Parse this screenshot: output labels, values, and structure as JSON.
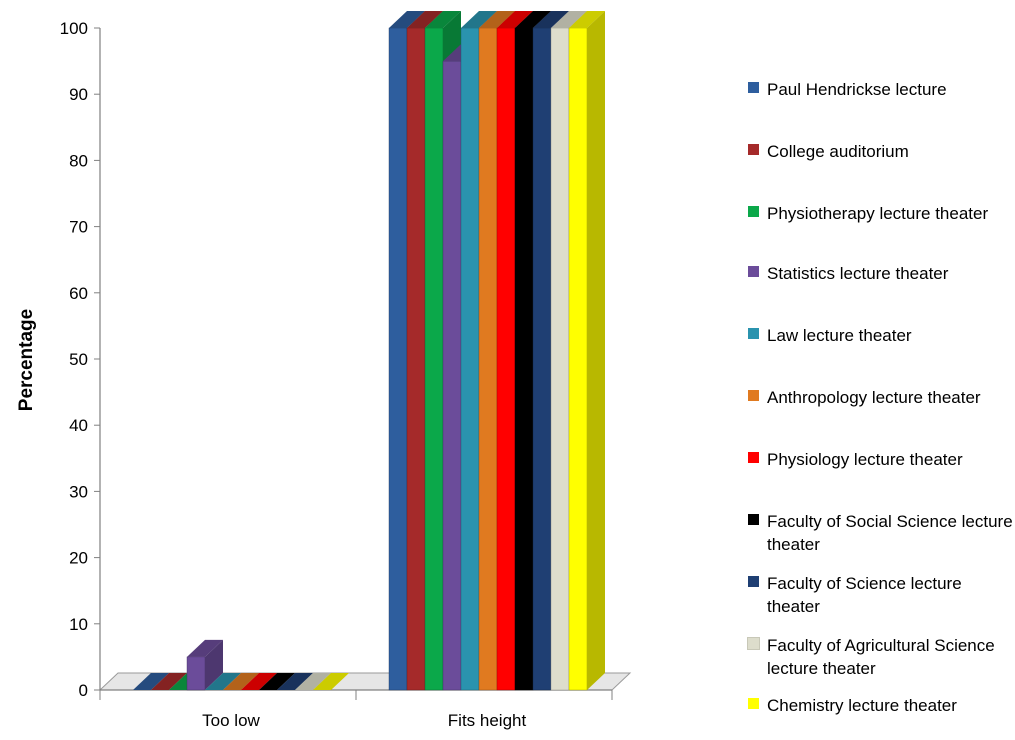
{
  "chart_data": {
    "type": "bar",
    "categories": [
      "Too low",
      "Fits height"
    ],
    "ylabel": "Percentage",
    "xlabel": "",
    "ylim": [
      0,
      100
    ],
    "yticks": [
      0,
      10,
      20,
      30,
      40,
      50,
      60,
      70,
      80,
      90,
      100
    ],
    "legend_position": "right",
    "grid": false,
    "series": [
      {
        "name": "Paul Hendrickse lecture",
        "color": "#2E5E9E",
        "values": [
          0,
          100
        ]
      },
      {
        "name": "College auditorium",
        "color": "#A52A2A",
        "values": [
          0,
          100
        ]
      },
      {
        "name": "Physiotherapy lecture theater",
        "color": "#0BA84A",
        "values": [
          0,
          100
        ]
      },
      {
        "name": "Statistics lecture theater",
        "color": "#6B4C9A",
        "values": [
          5,
          95
        ]
      },
      {
        "name": "Law lecture theater",
        "color": "#2A93AE",
        "values": [
          0,
          100
        ]
      },
      {
        "name": "Anthropology lecture theater",
        "color": "#E07A20",
        "values": [
          0,
          100
        ]
      },
      {
        "name": "Physiology lecture theater",
        "color": "#FF0000",
        "values": [
          0,
          100
        ]
      },
      {
        "name": "Faculty of Social Science lecture theater",
        "color": "#000000",
        "values": [
          0,
          100
        ]
      },
      {
        "name": "Faculty of Science lecture theater",
        "color": "#1F3F73",
        "values": [
          0,
          100
        ]
      },
      {
        "name": "Faculty of Agricultural Science lecture theater",
        "color": "#DDDDCC",
        "values": [
          0,
          100
        ]
      },
      {
        "name": "Chemistry lecture theater",
        "color": "#FFFF00",
        "values": [
          0,
          100
        ]
      }
    ]
  },
  "legend": {
    "items": [
      {
        "label": "Paul Hendrickse lecture",
        "color": "#2E5E9E"
      },
      {
        "label": "College auditorium",
        "color": "#A52A2A"
      },
      {
        "label": "Physiotherapy lecture theater",
        "color": "#0BA84A"
      },
      {
        "label": "Statistics lecture theater",
        "color": "#6B4C9A"
      },
      {
        "label": "Law lecture theater",
        "color": "#2A93AE"
      },
      {
        "label": "Anthropology lecture theater",
        "color": "#E07A20"
      },
      {
        "label": "Physiology lecture theater",
        "color": "#FF0000"
      },
      {
        "label": "Faculty of Social Science lecture theater",
        "color": "#000000"
      },
      {
        "label": "Faculty of Science lecture theater",
        "color": "#1F3F73"
      },
      {
        "label": "Faculty of Agricultural Science lecture theater",
        "color": "#DDDDCC"
      },
      {
        "label": "Chemistry lecture theater",
        "color": "#FFFF00"
      }
    ]
  }
}
